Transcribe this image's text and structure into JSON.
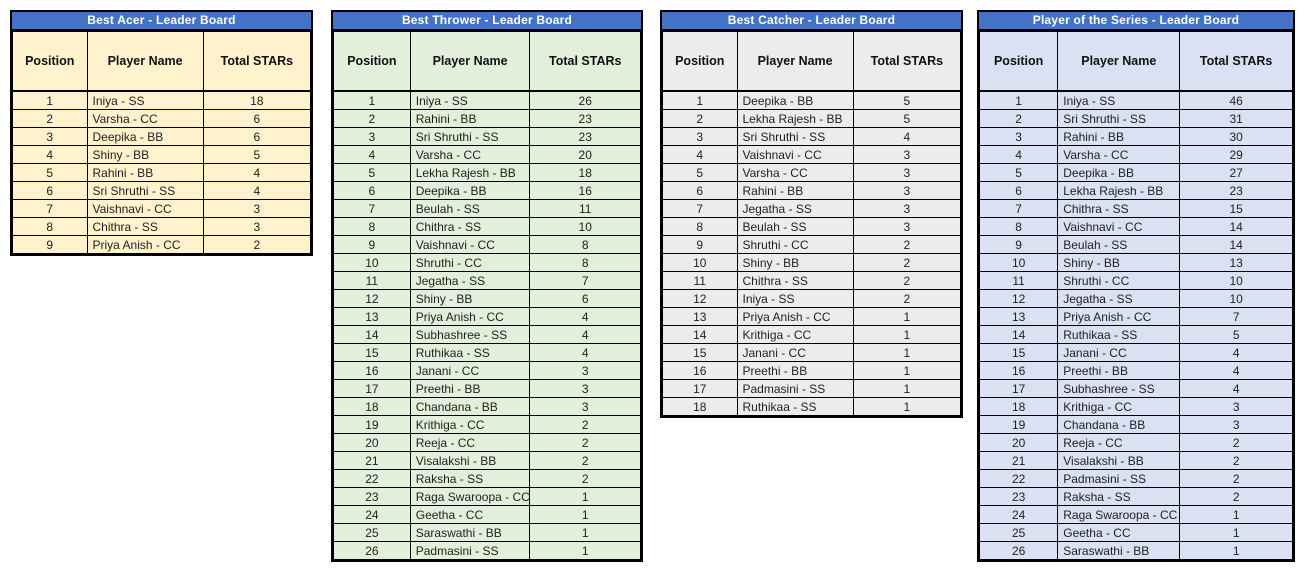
{
  "theme": {
    "header_bg": "#4472C4",
    "header_text": "#FFFFFF",
    "border": "#000000",
    "canvas_bg": "#FFFFFF"
  },
  "boards": [
    {
      "id": "best-acer",
      "title": "Best Acer - Leader Board",
      "body_bg": "#FFF2CC",
      "columns": [
        "Position",
        "Player Name",
        "Total STARs"
      ],
      "rows": [
        [
          1,
          "Iniya - SS",
          18
        ],
        [
          2,
          "Varsha - CC",
          6
        ],
        [
          3,
          "Deepika - BB",
          6
        ],
        [
          4,
          "Shiny - BB",
          5
        ],
        [
          5,
          "Rahini - BB",
          4
        ],
        [
          6,
          "Sri Shruthi - SS",
          4
        ],
        [
          7,
          "Vaishnavi - CC",
          3
        ],
        [
          8,
          "Chithra - SS",
          3
        ],
        [
          9,
          "Priya Anish - CC",
          2
        ]
      ]
    },
    {
      "id": "best-thrower",
      "title": "Best Thrower - Leader Board",
      "body_bg": "#E2EFDA",
      "columns": [
        "Position",
        "Player Name",
        "Total STARs"
      ],
      "rows": [
        [
          1,
          "Iniya - SS",
          26
        ],
        [
          2,
          "Rahini - BB",
          23
        ],
        [
          3,
          "Sri Shruthi - SS",
          23
        ],
        [
          4,
          "Varsha - CC",
          20
        ],
        [
          5,
          "Lekha Rajesh - BB",
          18
        ],
        [
          6,
          "Deepika - BB",
          16
        ],
        [
          7,
          "Beulah - SS",
          11
        ],
        [
          8,
          "Chithra - SS",
          10
        ],
        [
          9,
          "Vaishnavi - CC",
          8
        ],
        [
          10,
          "Shruthi - CC",
          8
        ],
        [
          11,
          "Jegatha - SS",
          7
        ],
        [
          12,
          "Shiny - BB",
          6
        ],
        [
          13,
          "Priya Anish - CC",
          4
        ],
        [
          14,
          "Subhashree - SS",
          4
        ],
        [
          15,
          "Ruthikaa - SS",
          4
        ],
        [
          16,
          "Janani - CC",
          3
        ],
        [
          17,
          "Preethi - BB",
          3
        ],
        [
          18,
          "Chandana - BB",
          3
        ],
        [
          19,
          "Krithiga - CC",
          2
        ],
        [
          20,
          "Reeja - CC",
          2
        ],
        [
          21,
          "Visalakshi - BB",
          2
        ],
        [
          22,
          "Raksha - SS",
          2
        ],
        [
          23,
          "Raga Swaroopa - CC",
          1
        ],
        [
          24,
          "Geetha - CC",
          1
        ],
        [
          25,
          "Saraswathi - BB",
          1
        ],
        [
          26,
          "Padmasini - SS",
          1
        ]
      ]
    },
    {
      "id": "best-catcher",
      "title": "Best Catcher - Leader Board",
      "body_bg": "#ECECEC",
      "columns": [
        "Position",
        "Player Name",
        "Total STARs"
      ],
      "rows": [
        [
          1,
          "Deepika - BB",
          5
        ],
        [
          2,
          "Lekha Rajesh - BB",
          5
        ],
        [
          3,
          "Sri Shruthi - SS",
          4
        ],
        [
          4,
          "Vaishnavi - CC",
          3
        ],
        [
          5,
          "Varsha - CC",
          3
        ],
        [
          6,
          "Rahini - BB",
          3
        ],
        [
          7,
          "Jegatha - SS",
          3
        ],
        [
          8,
          "Beulah - SS",
          3
        ],
        [
          9,
          "Shruthi - CC",
          2
        ],
        [
          10,
          "Shiny - BB",
          2
        ],
        [
          11,
          "Chithra - SS",
          2
        ],
        [
          12,
          "Iniya - SS",
          2
        ],
        [
          13,
          "Priya Anish - CC",
          1
        ],
        [
          14,
          "Krithiga - CC",
          1
        ],
        [
          15,
          "Janani - CC",
          1
        ],
        [
          16,
          "Preethi - BB",
          1
        ],
        [
          17,
          "Padmasini - SS",
          1
        ],
        [
          18,
          "Ruthikaa - SS",
          1
        ]
      ]
    },
    {
      "id": "player-of-the-series",
      "title": "Player of the Series - Leader Board",
      "body_bg": "#D9E1F2",
      "columns": [
        "Position",
        "Player Name",
        "Total STARs"
      ],
      "rows": [
        [
          1,
          "Iniya - SS",
          46
        ],
        [
          2,
          "Sri Shruthi - SS",
          31
        ],
        [
          3,
          "Rahini - BB",
          30
        ],
        [
          4,
          "Varsha - CC",
          29
        ],
        [
          5,
          "Deepika - BB",
          27
        ],
        [
          6,
          "Lekha Rajesh - BB",
          23
        ],
        [
          7,
          "Chithra - SS",
          15
        ],
        [
          8,
          "Vaishnavi - CC",
          14
        ],
        [
          9,
          "Beulah - SS",
          14
        ],
        [
          10,
          "Shiny - BB",
          13
        ],
        [
          11,
          "Shruthi - CC",
          10
        ],
        [
          12,
          "Jegatha - SS",
          10
        ],
        [
          13,
          "Priya Anish - CC",
          7
        ],
        [
          14,
          "Ruthikaa - SS",
          5
        ],
        [
          15,
          "Janani - CC",
          4
        ],
        [
          16,
          "Preethi - BB",
          4
        ],
        [
          17,
          "Subhashree - SS",
          4
        ],
        [
          18,
          "Krithiga - CC",
          3
        ],
        [
          19,
          "Chandana - BB",
          3
        ],
        [
          20,
          "Reeja - CC",
          2
        ],
        [
          21,
          "Visalakshi - BB",
          2
        ],
        [
          22,
          "Padmasini - SS",
          2
        ],
        [
          23,
          "Raksha - SS",
          2
        ],
        [
          24,
          "Raga Swaroopa - CC",
          1
        ],
        [
          25,
          "Geetha - CC",
          1
        ],
        [
          26,
          "Saraswathi - BB",
          1
        ]
      ]
    }
  ]
}
